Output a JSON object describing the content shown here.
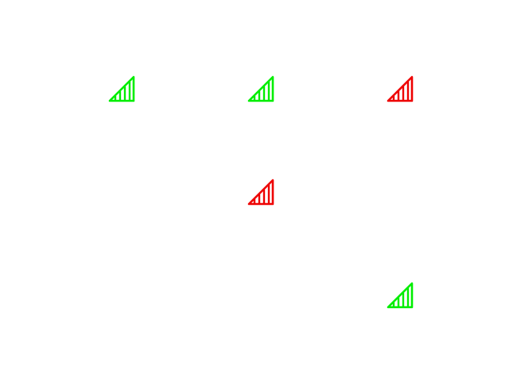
{
  "colors": {
    "background": "#ffffff",
    "good": "#00ee00",
    "bad": "#ee0000"
  },
  "signals": [
    {
      "icon": "signal-strength-icon",
      "status": "good"
    },
    {
      "icon": "signal-strength-icon",
      "status": "good"
    },
    {
      "icon": "signal-strength-icon",
      "status": "bad"
    },
    {
      "icon": "signal-strength-icon",
      "status": "bad"
    },
    {
      "icon": "signal-strength-icon",
      "status": "good"
    }
  ]
}
